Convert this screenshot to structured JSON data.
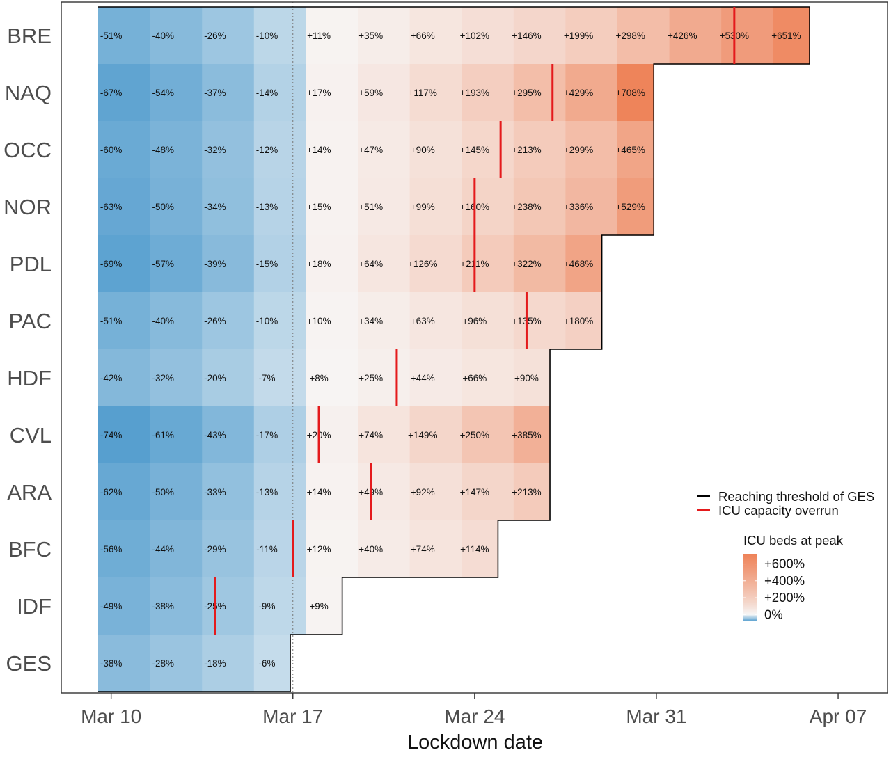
{
  "chart_data": {
    "type": "heatmap",
    "title": "",
    "xlabel": "Lockdown date",
    "ylabel": "",
    "x_ticks": [
      "Mar 10",
      "Mar 17",
      "Mar 24",
      "Mar 31",
      "Apr 07"
    ],
    "reference_line_date": "Mar 17",
    "start_date": "Mar 10",
    "rows": [
      {
        "region": "BRE",
        "values": [
          "-51%",
          "-40%",
          "-26%",
          "-10%",
          "+11%",
          "+35%",
          "+66%",
          "+102%",
          "+146%",
          "+199%",
          "+298%",
          "+426%",
          "+530%",
          "+651%"
        ],
        "red_marker_date": "Apr 03"
      },
      {
        "region": "NAQ",
        "values": [
          "-67%",
          "-54%",
          "-37%",
          "-14%",
          "+17%",
          "+59%",
          "+117%",
          "+193%",
          "+295%",
          "+429%",
          "+708%"
        ],
        "red_marker_date": "Mar 27"
      },
      {
        "region": "OCC",
        "values": [
          "-60%",
          "-48%",
          "-32%",
          "-12%",
          "+14%",
          "+47%",
          "+90%",
          "+145%",
          "+213%",
          "+299%",
          "+465%"
        ],
        "red_marker_date": "Mar 25"
      },
      {
        "region": "NOR",
        "values": [
          "-63%",
          "-50%",
          "-34%",
          "-13%",
          "+15%",
          "+51%",
          "+99%",
          "+160%",
          "+238%",
          "+336%",
          "+529%"
        ],
        "red_marker_date": "Mar 24"
      },
      {
        "region": "PDL",
        "values": [
          "-69%",
          "-57%",
          "-39%",
          "-15%",
          "+18%",
          "+64%",
          "+126%",
          "+211%",
          "+322%",
          "+468%"
        ],
        "red_marker_date": "Mar 24"
      },
      {
        "region": "PAC",
        "values": [
          "-51%",
          "-40%",
          "-26%",
          "-10%",
          "+10%",
          "+34%",
          "+63%",
          "+96%",
          "+135%",
          "+180%"
        ],
        "red_marker_date": "Mar 26"
      },
      {
        "region": "HDF",
        "values": [
          "-42%",
          "-32%",
          "-20%",
          "-7%",
          "+8%",
          "+25%",
          "+44%",
          "+66%",
          "+90%"
        ],
        "red_marker_date": "Mar 21"
      },
      {
        "region": "CVL",
        "values": [
          "-74%",
          "-61%",
          "-43%",
          "-17%",
          "+20%",
          "+74%",
          "+149%",
          "+250%",
          "+385%"
        ],
        "red_marker_date": "Mar 18"
      },
      {
        "region": "ARA",
        "values": [
          "-62%",
          "-50%",
          "-33%",
          "-13%",
          "+14%",
          "+49%",
          "+92%",
          "+147%",
          "+213%"
        ],
        "red_marker_date": "Mar 20"
      },
      {
        "region": "BFC",
        "values": [
          "-56%",
          "-44%",
          "-29%",
          "-11%",
          "+12%",
          "+40%",
          "+74%",
          "+114%"
        ],
        "red_marker_date": "Mar 17"
      },
      {
        "region": "IDF",
        "values": [
          "-49%",
          "-38%",
          "-25%",
          "-9%",
          "+9%"
        ],
        "red_marker_date": "Mar 14"
      },
      {
        "region": "GES",
        "values": [
          "-38%",
          "-28%",
          "-18%",
          "-6%"
        ],
        "red_marker_date": null
      }
    ],
    "legend": {
      "position": "right",
      "items": [
        {
          "label": "Reaching threshold of GES",
          "color": "#000000"
        },
        {
          "label": "ICU capacity overrun",
          "color": "#e41a1c"
        }
      ],
      "colorbar_title": "ICU beds at peak",
      "colorbar_ticks": [
        {
          "label": "+600%",
          "value": 600
        },
        {
          "label": "+400%",
          "value": 400
        },
        {
          "label": "+200%",
          "value": 200
        },
        {
          "label": "0%",
          "value": 0
        }
      ],
      "colorbar_range": [
        -80,
        720
      ]
    },
    "colors": {
      "negative": "#4f9bcd",
      "zero": "#f7f7f7",
      "positive": "#ee8258",
      "marker_black": "#000000",
      "marker_red": "#e41a1c",
      "reference_line": "#777777"
    }
  }
}
